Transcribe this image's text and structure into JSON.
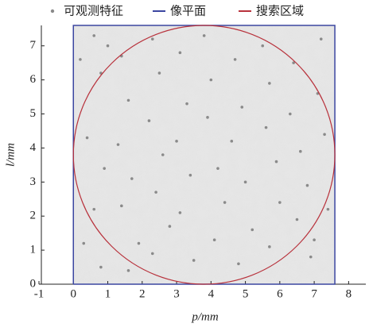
{
  "chart_data": {
    "type": "scatter",
    "xlabel": "p/mm",
    "ylabel": "l/mm",
    "xlim": [
      -1,
      8.5
    ],
    "ylim": [
      0,
      7.6
    ],
    "xticks": [
      -1,
      0,
      1,
      2,
      3,
      4,
      5,
      6,
      7,
      8
    ],
    "yticks": [
      0,
      1,
      2,
      3,
      4,
      5,
      6,
      7
    ],
    "legend": "top",
    "series": [
      {
        "name": "可观测特征",
        "type": "scatter",
        "color": "#8a8a8a",
        "x": [
          0.2,
          0.4,
          0.6,
          0.8,
          1.0,
          0.9,
          0.6,
          0.3,
          0.8,
          1.4,
          1.6,
          1.3,
          1.7,
          1.4,
          1.9,
          1.6,
          2.3,
          2.5,
          2.2,
          2.6,
          2.4,
          2.8,
          2.3,
          3.1,
          3.3,
          3.0,
          3.4,
          3.1,
          3.5,
          3.8,
          4.0,
          3.9,
          4.2,
          4.4,
          4.1,
          4.7,
          4.9,
          4.6,
          5.0,
          5.2,
          4.8,
          5.5,
          5.7,
          5.6,
          5.9,
          6.0,
          5.7,
          6.4,
          6.3,
          6.6,
          6.8,
          6.5,
          6.9,
          7.2,
          7.1,
          7.3,
          7.4,
          7.0
        ],
        "values": [
          6.6,
          4.3,
          7.3,
          6.2,
          7.0,
          3.4,
          2.2,
          1.2,
          0.5,
          6.7,
          5.4,
          4.1,
          3.1,
          2.3,
          1.2,
          0.4,
          7.2,
          6.2,
          4.8,
          3.8,
          2.7,
          1.7,
          0.9,
          6.8,
          5.3,
          4.2,
          3.2,
          2.1,
          0.7,
          7.3,
          6.0,
          4.9,
          3.4,
          2.4,
          1.3,
          6.6,
          5.2,
          4.2,
          3.0,
          1.6,
          0.6,
          7.0,
          5.9,
          4.6,
          3.6,
          2.4,
          1.1,
          6.5,
          5.0,
          3.9,
          2.9,
          1.9,
          0.8,
          7.2,
          5.6,
          4.4,
          2.2,
          1.3
        ]
      },
      {
        "name": "像平面",
        "type": "line",
        "color": "#3b46a0",
        "x": [
          0,
          7.6,
          7.6,
          0,
          0
        ],
        "values": [
          0,
          0,
          7.6,
          7.6,
          0
        ]
      },
      {
        "name": "搜索区域",
        "type": "circle",
        "color": "#b8323c",
        "center": [
          3.8,
          3.8
        ],
        "radius": 3.8
      }
    ]
  }
}
